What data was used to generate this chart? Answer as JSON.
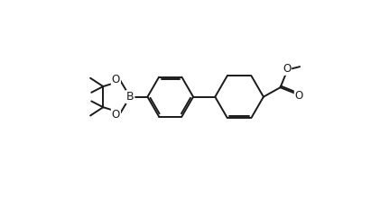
{
  "background_color": "#ffffff",
  "line_color": "#1a1a1a",
  "line_width": 1.4,
  "font_size": 8.5,
  "figsize": [
    4.11,
    2.19
  ],
  "dpi": 100,
  "xlim": [
    -0.5,
    10.5
  ],
  "ylim": [
    0.2,
    5.2
  ]
}
